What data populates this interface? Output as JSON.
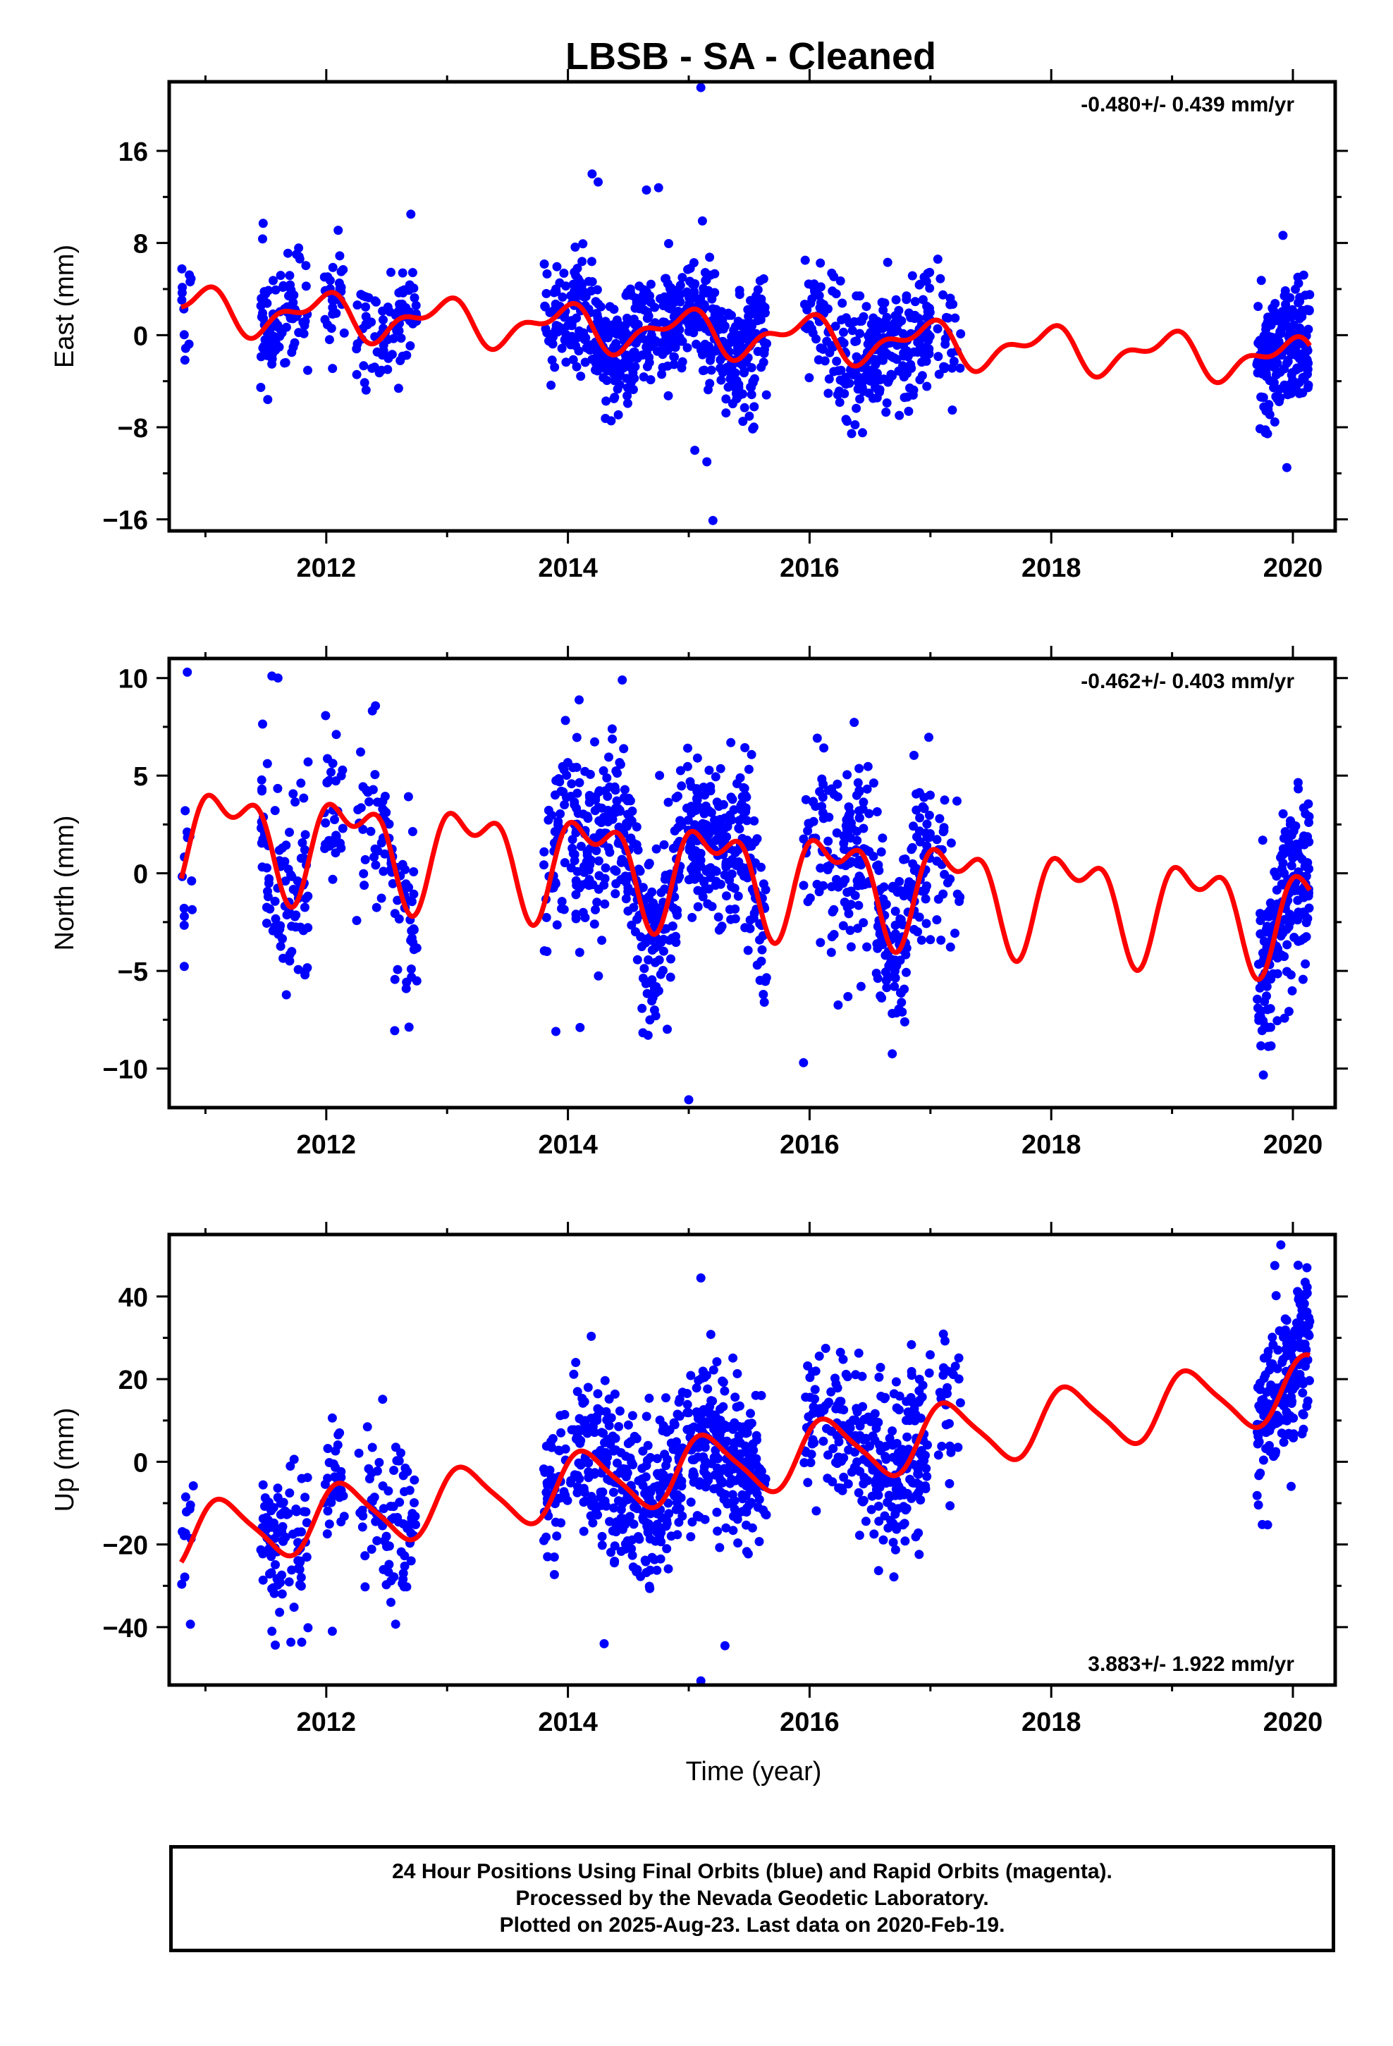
{
  "page": {
    "title": "LBSB  - SA - Cleaned"
  },
  "colors": {
    "final_orbits": "#0000ff",
    "model": "#ff0000",
    "axes": "#000000"
  },
  "chart_data": [
    {
      "type": "scatter",
      "ylabel": "East (mm)",
      "xlabel": "",
      "xlim": [
        2010.7,
        2020.35
      ],
      "ylim": [
        -17,
        22
      ],
      "x_ticks": [
        2012,
        2014,
        2016,
        2018,
        2020
      ],
      "y_ticks": [
        -16,
        -8,
        0,
        8,
        16
      ],
      "rate": "-0.480+/- 0.439 mm/yr",
      "rate_position": "top-right",
      "model": {
        "mean": 0,
        "trend": -0.48,
        "t0": 2015.5,
        "a1": 1.6,
        "p1": 1.9,
        "a2": 0.9,
        "p2": 0.4
      },
      "scatter": {
        "sigma": 2.6,
        "seed": 11,
        "outliers": [
          [
            2015.1,
            21.5
          ],
          [
            2015.2,
            -16.1
          ],
          [
            2014.2,
            14.0
          ],
          [
            2014.25,
            13.3
          ],
          [
            2014.75,
            12.8
          ],
          [
            2014.65,
            12.6
          ],
          [
            2012.7,
            10.5
          ],
          [
            2019.95,
            -11.5
          ],
          [
            2015.05,
            -10.0
          ],
          [
            2015.15,
            -11.0
          ]
        ]
      }
    },
    {
      "type": "scatter",
      "ylabel": "North (mm)",
      "xlabel": "",
      "xlim": [
        2010.7,
        2020.35
      ],
      "ylim": [
        -12,
        11
      ],
      "x_ticks": [
        2012,
        2014,
        2016,
        2018,
        2020
      ],
      "y_ticks": [
        -10,
        -5,
        0,
        5,
        10
      ],
      "rate": "-0.462+/- 0.403 mm/yr",
      "rate_position": "top-right",
      "model": {
        "mean": 0,
        "trend": -0.462,
        "t0": 2015.5,
        "a1": 2.2,
        "p1": 0.3,
        "a2": 1.3,
        "p2": 2.0
      },
      "scatter": {
        "sigma": 2.3,
        "seed": 23,
        "outliers": [
          [
            2010.85,
            10.3
          ],
          [
            2011.55,
            10.1
          ],
          [
            2011.6,
            10.0
          ],
          [
            2014.45,
            9.9
          ],
          [
            2015.0,
            -11.6
          ],
          [
            2015.95,
            -9.7
          ],
          [
            2013.9,
            -8.1
          ],
          [
            2014.1,
            -7.9
          ]
        ]
      }
    },
    {
      "type": "scatter",
      "ylabel": "Up (mm)",
      "xlabel": "Time (year)",
      "xlim": [
        2010.7,
        2020.35
      ],
      "ylim": [
        -54,
        55
      ],
      "x_ticks": [
        2012,
        2014,
        2016,
        2018,
        2020
      ],
      "y_ticks": [
        -40,
        -20,
        0,
        20,
        40
      ],
      "rate": "3.883+/- 1.922 mm/yr",
      "rate_position": "bottom-right",
      "model": {
        "mean": 0,
        "trend": 3.883,
        "t0": 2015.5,
        "a1": 7.5,
        "p1": 0.6,
        "a2": 1.5,
        "p2": 1.2
      },
      "scatter": {
        "sigma": 9.5,
        "seed": 37,
        "outliers": [
          [
            2015.1,
            44.5
          ],
          [
            2015.1,
            -53.0
          ],
          [
            2015.3,
            -44.5
          ],
          [
            2019.9,
            52.5
          ],
          [
            2019.85,
            47.5
          ],
          [
            2011.55,
            -41.0
          ],
          [
            2012.05,
            -41.0
          ],
          [
            2014.3,
            -44.0
          ]
        ]
      }
    }
  ],
  "footer": {
    "line1": "24 Hour Positions Using Final Orbits (blue) and Rapid Orbits (magenta).",
    "line2": "Processed by the Nevada Geodetic Laboratory.",
    "line3": "Plotted on 2025-Aug-23. Last data on 2020-Feb-19."
  }
}
